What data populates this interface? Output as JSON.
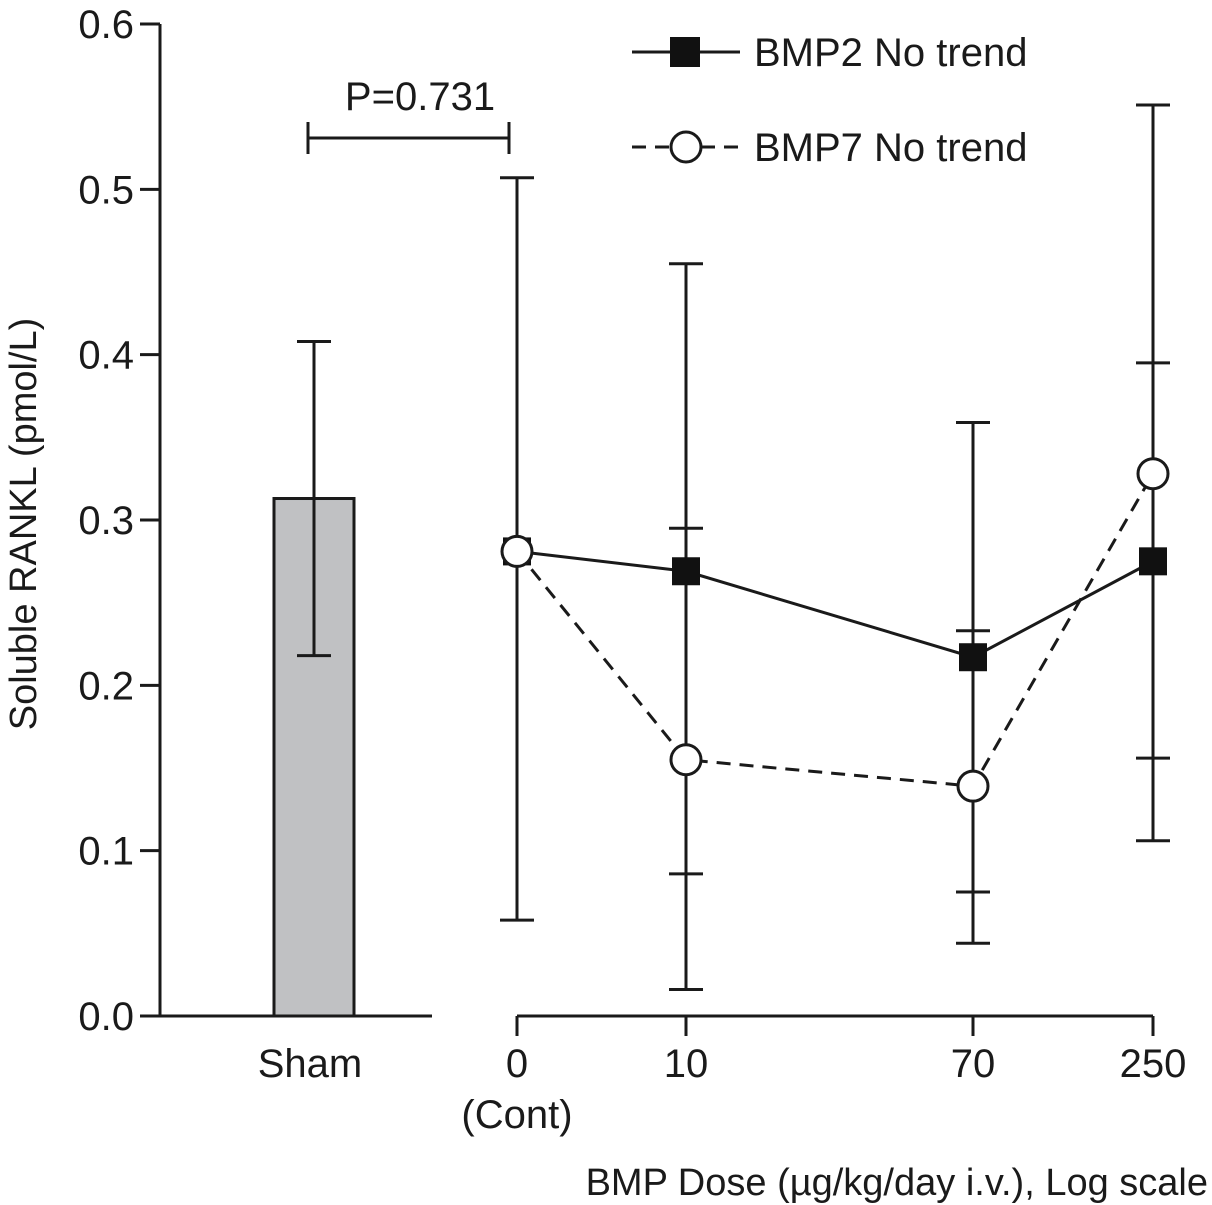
{
  "chart_data": {
    "type": "line",
    "ylabel": "Soluble RANKL (pmol/L)",
    "xlabel": "BMP Dose (µg/kg/day i.v.), Log scale",
    "ylim": [
      0,
      0.6
    ],
    "yticks": [
      "0.0",
      "0.1",
      "0.2",
      "0.3",
      "0.4",
      "0.5",
      "0.6"
    ],
    "ytick_values": [
      0,
      0.1,
      0.2,
      0.3,
      0.4,
      0.5,
      0.6
    ],
    "grid": false,
    "legend_position": "top-right",
    "sham": {
      "label": "Sham",
      "value": 0.313,
      "err_low": 0.218,
      "err_high": 0.408,
      "color": "#c0c1c3"
    },
    "dose_categories": [
      "0",
      "10",
      "70",
      "250"
    ],
    "dose_sub_labels": [
      "(Cont)",
      "",
      "",
      ""
    ],
    "series": [
      {
        "name": "BMP2 No trend",
        "marker": "filled-square",
        "line_style": "solid",
        "values": [
          0.281,
          0.269,
          0.217,
          0.275
        ],
        "err_low": [
          0.058,
          0.016,
          0.044,
          0.106
        ],
        "err_high": [
          0.507,
          0.455,
          0.359,
          0.551
        ]
      },
      {
        "name": "BMP7 No trend",
        "marker": "open-circle",
        "line_style": "dashed",
        "values": [
          0.281,
          0.155,
          0.139,
          0.328
        ],
        "err_low": [
          0.281,
          0.086,
          0.075,
          0.156
        ],
        "err_high": [
          0.281,
          0.295,
          0.233,
          0.395
        ]
      }
    ],
    "annotation": {
      "text": "P=0.731"
    }
  }
}
